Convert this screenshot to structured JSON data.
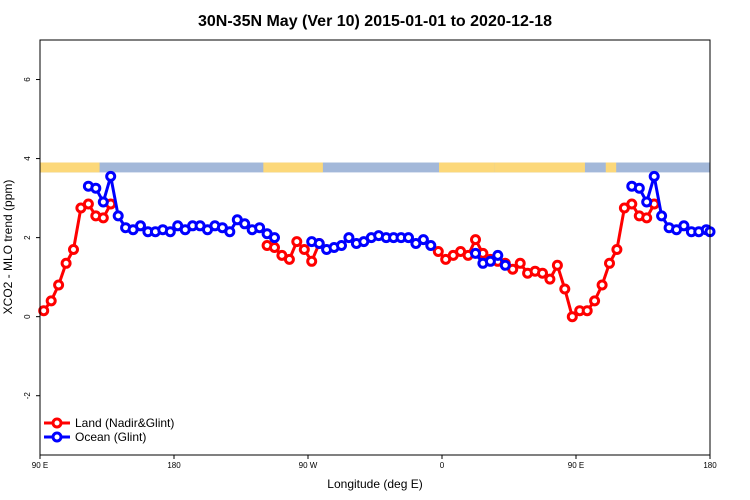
{
  "chart_data": {
    "type": "line",
    "title": "30N-35N May (Ver 10)   2015-01-01 to 2020-12-18",
    "xlabel": "Longitude (deg E)",
    "ylabel": "XCO2 - MLO trend (ppm)",
    "xlim": [
      90,
      540
    ],
    "ylim": [
      -3.5,
      7.0
    ],
    "x_ticks": [
      {
        "value": 90,
        "label": "90 E"
      },
      {
        "value": 180,
        "label": "180"
      },
      {
        "value": 270,
        "label": "90 W"
      },
      {
        "value": 360,
        "label": "0"
      },
      {
        "value": 450,
        "label": "90 E"
      },
      {
        "value": 540,
        "label": "180"
      }
    ],
    "y_ticks": [
      {
        "value": -2,
        "label": "-2"
      },
      {
        "value": 0,
        "label": "0"
      },
      {
        "value": 2,
        "label": "2"
      },
      {
        "value": 4,
        "label": "4"
      },
      {
        "value": 6,
        "label": "6"
      }
    ],
    "grid": false,
    "legend_position": "bottom-left",
    "land_ocean_band": {
      "y_range": [
        3.65,
        3.9
      ],
      "ocean_color": "#a3b8d9",
      "land_color": "#fcd87a",
      "land_segments": [
        [
          90,
          130
        ],
        [
          240,
          280
        ],
        [
          358,
          395
        ],
        [
          395,
          456
        ],
        [
          470,
          477
        ]
      ]
    },
    "series": [
      {
        "name": "Land (Nadir&Glint)",
        "color": "#ff0000",
        "segments": [
          [
            [
              92.5,
              0.15
            ],
            [
              97.5,
              0.4
            ],
            [
              102.5,
              0.8
            ],
            [
              107.5,
              1.35
            ],
            [
              112.5,
              1.7
            ],
            [
              117.5,
              2.75
            ],
            [
              122.5,
              2.85
            ],
            [
              127.5,
              2.55
            ],
            [
              132.5,
              2.5
            ],
            [
              137.5,
              2.85
            ]
          ],
          [
            [
              242.5,
              1.8
            ],
            [
              247.5,
              1.75
            ],
            [
              252.5,
              1.55
            ],
            [
              257.5,
              1.45
            ],
            [
              262.5,
              1.9
            ],
            [
              267.5,
              1.7
            ],
            [
              272.5,
              1.4
            ],
            [
              277.5,
              1.85
            ]
          ],
          [
            [
              357.5,
              1.65
            ],
            [
              362.5,
              1.45
            ],
            [
              367.5,
              1.55
            ],
            [
              372.5,
              1.65
            ],
            [
              377.5,
              1.55
            ],
            [
              382.5,
              1.95
            ],
            [
              387.5,
              1.6
            ],
            [
              392.5,
              1.45
            ],
            [
              397.5,
              1.4
            ],
            [
              402.5,
              1.35
            ],
            [
              407.5,
              1.2
            ],
            [
              412.5,
              1.35
            ],
            [
              417.5,
              1.1
            ],
            [
              422.5,
              1.15
            ],
            [
              427.5,
              1.1
            ],
            [
              432.5,
              0.95
            ],
            [
              437.5,
              1.3
            ],
            [
              442.5,
              0.7
            ],
            [
              447.5,
              0.0
            ],
            [
              452.5,
              0.15
            ],
            [
              457.5,
              0.15
            ],
            [
              462.5,
              0.4
            ],
            [
              467.5,
              0.8
            ],
            [
              472.5,
              1.35
            ],
            [
              477.5,
              1.7
            ],
            [
              482.5,
              2.75
            ],
            [
              487.5,
              2.85
            ],
            [
              492.5,
              2.55
            ],
            [
              497.5,
              2.5
            ],
            [
              502.5,
              2.85
            ]
          ]
        ]
      },
      {
        "name": "Ocean (Glint)",
        "color": "#0000ff",
        "segments": [
          [
            [
              122.5,
              3.3
            ],
            [
              127.5,
              3.25
            ],
            [
              132.5,
              2.9
            ],
            [
              137.5,
              3.55
            ],
            [
              142.5,
              2.55
            ],
            [
              147.5,
              2.25
            ],
            [
              152.5,
              2.2
            ],
            [
              157.5,
              2.3
            ],
            [
              162.5,
              2.15
            ],
            [
              167.5,
              2.15
            ],
            [
              172.5,
              2.2
            ],
            [
              177.5,
              2.15
            ],
            [
              182.5,
              2.3
            ],
            [
              187.5,
              2.2
            ],
            [
              192.5,
              2.3
            ],
            [
              197.5,
              2.3
            ],
            [
              202.5,
              2.2
            ],
            [
              207.5,
              2.3
            ],
            [
              212.5,
              2.25
            ],
            [
              217.5,
              2.15
            ],
            [
              222.5,
              2.45
            ],
            [
              227.5,
              2.35
            ],
            [
              232.5,
              2.2
            ],
            [
              237.5,
              2.25
            ],
            [
              242.5,
              2.1
            ],
            [
              247.5,
              2.0
            ]
          ],
          [
            [
              272.5,
              1.9
            ],
            [
              277.5,
              1.85
            ],
            [
              282.5,
              1.7
            ],
            [
              287.5,
              1.75
            ],
            [
              292.5,
              1.8
            ],
            [
              297.5,
              2.0
            ],
            [
              302.5,
              1.85
            ],
            [
              307.5,
              1.9
            ],
            [
              312.5,
              2.0
            ],
            [
              317.5,
              2.05
            ],
            [
              322.5,
              2.0
            ],
            [
              327.5,
              2.0
            ],
            [
              332.5,
              2.0
            ],
            [
              337.5,
              2.0
            ],
            [
              342.5,
              1.85
            ],
            [
              347.5,
              1.95
            ],
            [
              352.5,
              1.8
            ]
          ],
          [
            [
              382.5,
              1.6
            ],
            [
              387.5,
              1.35
            ],
            [
              392.5,
              1.4
            ],
            [
              397.5,
              1.55
            ],
            [
              402.5,
              1.3
            ]
          ],
          [
            [
              487.5,
              3.3
            ],
            [
              492.5,
              3.25
            ],
            [
              497.5,
              2.9
            ],
            [
              502.5,
              3.55
            ],
            [
              507.5,
              2.55
            ],
            [
              512.5,
              2.25
            ],
            [
              517.5,
              2.2
            ],
            [
              522.5,
              2.3
            ],
            [
              527.5,
              2.15
            ],
            [
              532.5,
              2.15
            ],
            [
              537.5,
              2.2
            ],
            [
              540,
              2.15
            ]
          ]
        ]
      }
    ]
  }
}
